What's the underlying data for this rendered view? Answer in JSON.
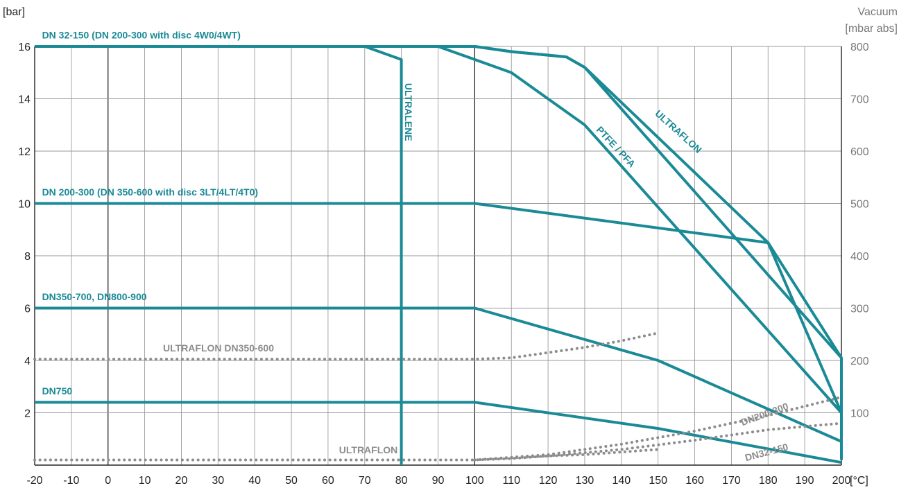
{
  "chart_data": {
    "type": "line",
    "xlabel": "[°C]",
    "ylabel": "[bar]",
    "y2label": [
      "Vacuum",
      "[mbar abs]"
    ],
    "xlim": [
      -20,
      200
    ],
    "ylim": [
      0,
      16
    ],
    "y2lim": [
      0,
      800
    ],
    "xticks": [
      "-20",
      "-10",
      "0",
      "10",
      "20",
      "30",
      "40",
      "50",
      "60",
      "70",
      "80",
      "90",
      "100",
      "110",
      "120",
      "130",
      "140",
      "150",
      "160",
      "170",
      "180",
      "190",
      "200"
    ],
    "yticks": [
      "2",
      "4",
      "6",
      "8",
      "10",
      "12",
      "14",
      "16"
    ],
    "y2ticks": [
      "100",
      "200",
      "300",
      "400",
      "500",
      "600",
      "700",
      "800"
    ],
    "grid": true,
    "colors": {
      "pressure": "#1a8a96",
      "vacuum": "#8c8c8c"
    },
    "series": [
      {
        "name": "DN 32-150 (DN 200-300 with disc 4W0/4WT)",
        "style": "solid",
        "points": [
          [
            -20,
            16
          ],
          [
            100,
            16
          ],
          [
            110,
            15.8
          ],
          [
            125,
            15.6
          ],
          [
            130,
            15.2
          ],
          [
            200,
            4.1
          ],
          [
            200,
            0.2
          ]
        ]
      },
      {
        "name": "ULTRALENE",
        "style": "solid",
        "points": [
          [
            70,
            16
          ],
          [
            80,
            15.5
          ],
          [
            80,
            0
          ]
        ]
      },
      {
        "name": "PTFE / PFA",
        "style": "solid",
        "points": [
          [
            90,
            16
          ],
          [
            100,
            15.5
          ],
          [
            110,
            15
          ],
          [
            130,
            13
          ],
          [
            200,
            2
          ]
        ]
      },
      {
        "name": "ULTRAFLON",
        "style": "solid",
        "points": [
          [
            100,
            16
          ],
          [
            110,
            15.8
          ],
          [
            125,
            15.6
          ],
          [
            130,
            15.2
          ],
          [
            180,
            8.5
          ],
          [
            200,
            4.1
          ]
        ]
      },
      {
        "name": "DN 200-300 (DN 350-600 with disc 3LT/4LT/4T0)",
        "style": "solid",
        "points": [
          [
            -20,
            10
          ],
          [
            100,
            10
          ],
          [
            180,
            8.5
          ],
          [
            200,
            2
          ]
        ]
      },
      {
        "name": "DN350-700, DN800-900",
        "style": "solid",
        "points": [
          [
            -20,
            6
          ],
          [
            100,
            6
          ],
          [
            150,
            4
          ],
          [
            200,
            0.9
          ]
        ]
      },
      {
        "name": "DN750",
        "style": "solid",
        "points": [
          [
            -20,
            2.4
          ],
          [
            100,
            2.4
          ],
          [
            150,
            1.4
          ],
          [
            200,
            0.1
          ]
        ]
      },
      {
        "name": "ULTRAFLON DN350-600",
        "style": "dotted",
        "points": [
          [
            -20,
            4.05
          ],
          [
            100,
            4.05
          ],
          [
            110,
            4.1
          ],
          [
            120,
            4.3
          ],
          [
            130,
            4.5
          ],
          [
            140,
            4.75
          ],
          [
            150,
            5.05
          ]
        ]
      },
      {
        "name": "ULTRAFLON",
        "style": "dotted",
        "points": [
          [
            -20,
            0.2
          ],
          [
            100,
            0.2
          ],
          [
            110,
            0.25
          ],
          [
            120,
            0.35
          ],
          [
            130,
            0.4
          ],
          [
            140,
            0.5
          ],
          [
            150,
            0.6
          ]
        ]
      },
      {
        "name": "DN200-300",
        "style": "dotted",
        "points": [
          [
            100,
            0.2
          ],
          [
            120,
            0.4
          ],
          [
            140,
            0.8
          ],
          [
            160,
            1.3
          ],
          [
            180,
            1.9
          ],
          [
            200,
            2.6
          ]
        ]
      },
      {
        "name": "DN32-150",
        "style": "dotted",
        "points": [
          [
            100,
            0.2
          ],
          [
            120,
            0.35
          ],
          [
            140,
            0.6
          ],
          [
            160,
            0.95
          ],
          [
            180,
            1.35
          ],
          [
            200,
            1.6
          ]
        ]
      }
    ],
    "annotations": [
      {
        "text": "DN 32-150 (DN 200-300 with disc 4W0/4WT)",
        "x": -18,
        "y": 16.3,
        "rotate": 0,
        "color": "#1a8a96"
      },
      {
        "text": "DN 200-300 (DN 350-600 with disc 3LT/4LT/4T0)",
        "x": -18,
        "y": 10.3,
        "rotate": 0,
        "color": "#1a8a96"
      },
      {
        "text": "DN350-700, DN800-900",
        "x": -18,
        "y": 6.3,
        "rotate": 0,
        "color": "#1a8a96"
      },
      {
        "text": "DN750",
        "x": -18,
        "y": 2.7,
        "rotate": 0,
        "color": "#1a8a96"
      },
      {
        "text": "ULTRALENE",
        "x": 81,
        "y": 14.6,
        "rotate": 90,
        "color": "#1a8a96"
      },
      {
        "text": "PTFE / PFA",
        "x": 133,
        "y": 12.8,
        "rotate": 47,
        "color": "#1a8a96"
      },
      {
        "text": "ULTRAFLON",
        "x": 149,
        "y": 13.4,
        "rotate": 42,
        "color": "#1a8a96"
      },
      {
        "text": "ULTRAFLON DN350-600",
        "x": 15,
        "y": 4.35,
        "rotate": 0,
        "color": "#8c8c8c"
      },
      {
        "text": "ULTRAFLON",
        "x": 63,
        "y": 0.45,
        "rotate": 0,
        "color": "#8c8c8c"
      },
      {
        "text": "DN200-300",
        "x": 173,
        "y": 1.5,
        "rotate": -20,
        "color": "#8c8c8c"
      },
      {
        "text": "DN32-150",
        "x": 174,
        "y": 0.15,
        "rotate": -15,
        "color": "#8c8c8c"
      }
    ]
  }
}
